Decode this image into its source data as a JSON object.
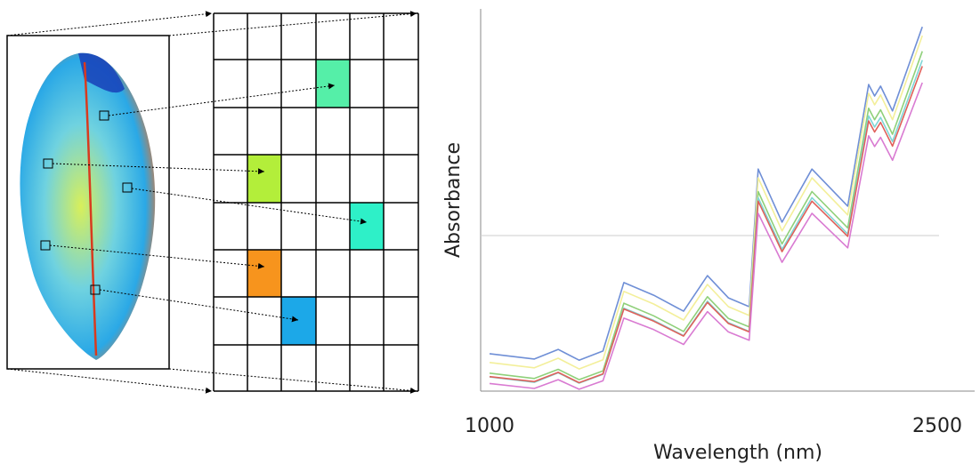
{
  "chart_data": {
    "type": "line",
    "xlabel": "Wavelength (nm)",
    "ylabel": "Absorbance",
    "x": [
      1000,
      1150,
      1230,
      1300,
      1380,
      1450,
      1550,
      1650,
      1730,
      1800,
      1870,
      1900,
      1980,
      2080,
      2200,
      2270,
      2290,
      2310,
      2350,
      2450
    ],
    "xlim": [
      1000,
      2500
    ],
    "xticks": [
      1000,
      2500
    ],
    "ylim": [
      0,
      1
    ],
    "reference_line": 0.407,
    "series": [
      {
        "color": "#6f8fd6",
        "values": [
          0.098,
          0.084,
          0.109,
          0.081,
          0.105,
          0.284,
          0.251,
          0.209,
          0.302,
          0.244,
          0.221,
          0.581,
          0.442,
          0.581,
          0.484,
          0.802,
          0.772,
          0.798,
          0.733,
          0.953
        ]
      },
      {
        "color": "#f3ef9a",
        "values": [
          0.075,
          0.061,
          0.086,
          0.058,
          0.082,
          0.261,
          0.228,
          0.186,
          0.279,
          0.221,
          0.198,
          0.558,
          0.419,
          0.558,
          0.461,
          0.779,
          0.749,
          0.775,
          0.71,
          0.93
        ]
      },
      {
        "color": "#8fd07a",
        "values": [
          0.047,
          0.033,
          0.057,
          0.03,
          0.053,
          0.23,
          0.197,
          0.156,
          0.247,
          0.19,
          0.168,
          0.522,
          0.385,
          0.522,
          0.427,
          0.74,
          0.71,
          0.736,
          0.672,
          0.889
        ]
      },
      {
        "color": "#7fd6d6",
        "values": [
          0.037,
          0.023,
          0.048,
          0.021,
          0.044,
          0.217,
          0.185,
          0.145,
          0.235,
          0.179,
          0.156,
          0.506,
          0.371,
          0.506,
          0.411,
          0.72,
          0.691,
          0.716,
          0.653,
          0.866
        ]
      },
      {
        "color": "#e0605a",
        "values": [
          0.038,
          0.025,
          0.049,
          0.022,
          0.045,
          0.215,
          0.183,
          0.144,
          0.232,
          0.177,
          0.155,
          0.497,
          0.365,
          0.497,
          0.405,
          0.707,
          0.678,
          0.703,
          0.641,
          0.85
        ]
      },
      {
        "color": "#d97bd2",
        "values": [
          0.02,
          0.007,
          0.03,
          0.005,
          0.027,
          0.191,
          0.161,
          0.122,
          0.208,
          0.155,
          0.133,
          0.465,
          0.337,
          0.465,
          0.375,
          0.668,
          0.64,
          0.664,
          0.604,
          0.807
        ]
      }
    ]
  }
}
